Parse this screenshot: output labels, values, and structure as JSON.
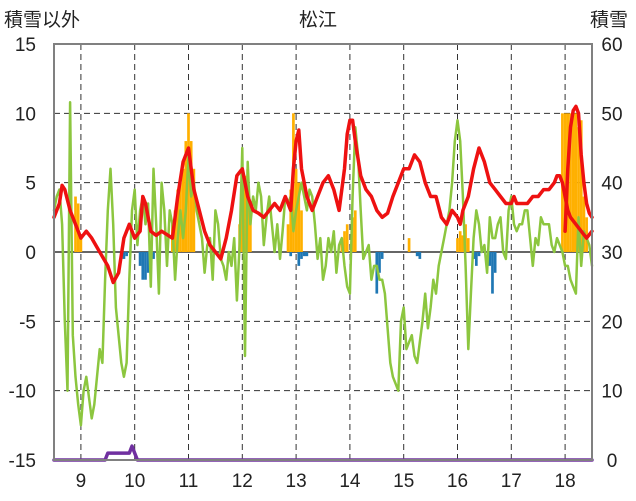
{
  "chart_data": {
    "type": "line",
    "title": "松江",
    "left_axis_label": "積雪以外",
    "right_axis_label": "積雪",
    "left_ylim": [
      -15,
      15
    ],
    "left_ticks": [
      15,
      10,
      5,
      0,
      -5,
      -10,
      -15
    ],
    "right_ylim": [
      0,
      60
    ],
    "right_ticks": [
      60,
      50,
      40,
      30,
      20,
      10,
      0
    ],
    "xlim": [
      8.5,
      18.5
    ],
    "x_ticks": [
      9,
      10,
      11,
      12,
      13,
      14,
      15,
      16,
      17,
      18
    ],
    "grid": "dashed vertical and horizontal",
    "colors": {
      "red": "#ee1111",
      "green": "#8cc63f",
      "orange": "#ffb000",
      "blue": "#1f77b4",
      "purple": "#7030a0",
      "frame": "#808080"
    },
    "series": [
      {
        "color": "red",
        "axis": "left",
        "x": [
          8.5,
          8.6,
          8.65,
          8.7,
          8.8,
          8.9,
          9.0,
          9.1,
          9.2,
          9.35,
          9.5,
          9.6,
          9.7,
          9.8,
          9.9,
          10.0,
          10.1,
          10.15,
          10.2,
          10.3,
          10.4,
          10.5,
          10.7,
          10.8,
          10.9,
          11.0,
          11.05,
          11.1,
          11.2,
          11.3,
          11.4,
          11.5,
          11.6,
          11.7,
          11.8,
          11.9,
          12.0,
          12.1,
          12.2,
          12.3,
          12.4,
          12.5,
          12.6,
          12.7,
          12.8,
          12.9,
          12.95,
          13.0,
          13.05,
          13.1,
          13.2,
          13.3,
          13.4,
          13.5,
          13.6,
          13.7,
          13.8,
          13.9,
          13.95,
          14.0,
          14.05,
          14.1,
          14.2,
          14.3,
          14.4,
          14.5,
          14.6,
          14.7,
          14.8,
          14.9,
          15.0,
          15.1,
          15.2,
          15.3,
          15.4,
          15.5,
          15.6,
          15.7,
          15.8,
          15.9,
          16.0,
          16.05,
          16.1,
          16.2,
          16.3,
          16.4,
          16.5,
          16.6,
          16.7,
          16.8,
          16.9,
          17.0,
          17.05,
          17.1,
          17.2,
          17.3,
          17.4,
          17.5,
          17.6,
          17.7,
          17.8,
          17.85,
          17.9,
          17.95,
          18.0,
          18.05,
          18.1,
          18.2,
          18.3,
          18.4,
          18.5
        ],
        "y": [
          2.5,
          3.5,
          4.8,
          4.5,
          3.0,
          2.0,
          1.0,
          1.5,
          1.0,
          0.0,
          -1.0,
          -2.2,
          -1.5,
          1.0,
          2.0,
          1.0,
          1.5,
          4.0,
          3.5,
          1.5,
          1.2,
          1.5,
          1.0,
          4.0,
          6.5,
          7.5,
          6.0,
          4.5,
          3.0,
          1.5,
          0.5,
          0.0,
          -0.5,
          1.0,
          3.0,
          5.5,
          6.0,
          4.0,
          3.0,
          2.8,
          2.5,
          3.0,
          3.5,
          3.0,
          4.0,
          3.0,
          6.0,
          8.0,
          8.8,
          6.0,
          4.0,
          3.0,
          4.0,
          5.0,
          5.5,
          4.5,
          3.0,
          6.0,
          8.5,
          9.5,
          9.5,
          8.0,
          5.5,
          4.5,
          4.0,
          3.0,
          2.5,
          2.8,
          4.0,
          5.0,
          6.0,
          6.0,
          7.0,
          6.5,
          5.0,
          4.0,
          4.0,
          2.5,
          2.0,
          3.0,
          2.5,
          2.0,
          3.0,
          4.0,
          6.0,
          7.5,
          6.5,
          5.0,
          4.5,
          4.0,
          3.5,
          3.5,
          4.0,
          3.5,
          3.5,
          3.5,
          4.0,
          4.0,
          4.5,
          4.5,
          5.0,
          5.5,
          5.5,
          5.0,
          4.0,
          3.0,
          2.5,
          2.0,
          1.5,
          1.0,
          1.5
        ]
      },
      {
        "color": "red",
        "axis": "left",
        "x": [
          18.0,
          18.05,
          18.1,
          18.15,
          18.2,
          18.25,
          18.3,
          18.35,
          18.4,
          18.45,
          18.5
        ],
        "y": [
          1.5,
          6.0,
          9.0,
          10.2,
          10.5,
          10.0,
          7.0,
          5.0,
          3.5,
          2.8,
          2.5
        ]
      },
      {
        "color": "green",
        "axis": "left",
        "x": [
          8.5,
          8.55,
          8.6,
          8.65,
          8.7,
          8.75,
          8.8,
          8.85,
          8.9,
          8.95,
          9.0,
          9.05,
          9.1,
          9.15,
          9.2,
          9.25,
          9.3,
          9.35,
          9.4,
          9.45,
          9.5,
          9.55,
          9.6,
          9.65,
          9.7,
          9.75,
          9.8,
          9.85,
          9.9,
          9.95,
          10.0,
          10.05,
          10.1,
          10.15,
          10.2,
          10.25,
          10.3,
          10.35,
          10.4,
          10.45,
          10.5,
          10.55,
          10.6,
          10.65,
          10.7,
          10.75,
          10.8,
          10.85,
          10.9,
          10.95,
          11.0,
          11.05,
          11.1,
          11.15,
          11.2,
          11.25,
          11.3,
          11.35,
          11.4,
          11.45,
          11.5,
          11.55,
          11.6,
          11.65,
          11.7,
          11.75,
          11.8,
          11.85,
          11.9,
          11.95,
          12.0,
          12.05,
          12.1,
          12.15,
          12.2,
          12.25,
          12.3,
          12.35,
          12.4,
          12.45,
          12.5,
          12.55,
          12.6,
          12.65,
          12.7,
          12.75,
          12.8,
          12.85,
          12.9,
          12.95,
          13.0,
          13.05,
          13.1,
          13.15,
          13.2,
          13.25,
          13.3,
          13.35,
          13.4,
          13.45,
          13.5,
          13.55,
          13.6,
          13.65,
          13.7,
          13.75,
          13.8,
          13.85,
          13.9,
          13.95,
          14.0,
          14.05,
          14.1,
          14.15,
          14.2,
          14.25,
          14.3,
          14.35,
          14.4,
          14.45,
          14.5,
          14.55,
          14.6,
          14.65,
          14.7,
          14.75,
          14.8,
          14.85,
          14.9,
          14.95,
          15.0,
          15.05,
          15.1,
          15.15,
          15.2,
          15.25,
          15.3,
          15.35,
          15.4,
          15.45,
          15.5,
          15.55,
          15.6,
          15.65,
          15.7,
          15.75,
          15.8,
          15.85,
          15.9,
          15.95,
          16.0,
          16.05,
          16.1,
          16.15,
          16.2,
          16.25,
          16.3,
          16.35,
          16.4,
          16.45,
          16.5,
          16.55,
          16.6,
          16.65,
          16.7,
          16.75,
          16.8,
          16.85,
          16.9,
          16.95,
          17.0,
          17.05,
          17.1,
          17.15,
          17.2,
          17.25,
          17.3,
          17.35,
          17.4,
          17.45,
          17.5,
          17.55,
          17.6,
          17.65,
          17.7,
          17.75,
          17.8,
          17.85,
          17.9,
          17.95,
          18.0,
          18.05,
          18.1,
          18.15,
          18.2,
          18.25,
          18.3,
          18.35,
          18.4,
          18.45,
          18.5
        ],
        "y": [
          3.0,
          4.0,
          4.5,
          2.0,
          -5.0,
          -10.0,
          10.8,
          -6.0,
          -9.0,
          -11.0,
          -12.5,
          -10.0,
          -9.0,
          -10.5,
          -12.0,
          -11.0,
          -9.0,
          -7.0,
          -8.0,
          -2.0,
          3.0,
          6.0,
          2.0,
          -4.0,
          -6.0,
          -8.0,
          -9.0,
          -8.0,
          -2.0,
          3.0,
          4.5,
          0.5,
          3.0,
          4.0,
          2.0,
          3.5,
          -2.5,
          6.0,
          2.0,
          -3.0,
          5.0,
          3.0,
          -1.0,
          3.0,
          2.0,
          -2.0,
          1.0,
          3.0,
          1.0,
          3.0,
          7.0,
          4.0,
          5.0,
          3.0,
          2.0,
          1.0,
          -1.5,
          0.5,
          1.0,
          -2.0,
          3.0,
          2.0,
          -0.5,
          -1.0,
          -2.0,
          0.0,
          -1.0,
          1.0,
          -3.5,
          0.5,
          7.5,
          -7.5,
          6.5,
          2.0,
          4.0,
          3.0,
          5.0,
          4.0,
          0.5,
          2.5,
          4.0,
          2.0,
          0.0,
          2.0,
          -0.5,
          1.5,
          4.0,
          3.5,
          4.0,
          1.5,
          3.0,
          4.0,
          5.0,
          4.0,
          3.0,
          4.5,
          4.0,
          2.0,
          -0.5,
          1.0,
          -2.0,
          -1.0,
          1.0,
          0.0,
          1.5,
          -1.5,
          0.5,
          1.0,
          -1.0,
          -2.5,
          -3.0,
          4.0,
          9.0,
          7.0,
          3.0,
          -0.5,
          0.0,
          0.5,
          -2.0,
          -1.0,
          -1.0,
          -2.0,
          -2.0,
          -3.0,
          -5.5,
          -8.0,
          -9.0,
          -9.5,
          -10.0,
          -5.0,
          -4.0,
          -7.0,
          -6.5,
          -6.0,
          -7.5,
          -8.0,
          -6.5,
          -5.0,
          -3.0,
          -5.5,
          -4.0,
          -2.0,
          -3.0,
          -1.0,
          0.0,
          1.0,
          2.0,
          3.0,
          5.0,
          8.0,
          9.5,
          8.0,
          4.0,
          -1.0,
          -7.0,
          -3.0,
          1.0,
          3.0,
          2.0,
          0.0,
          0.5,
          -1.5,
          2.5,
          1.0,
          1.0,
          2.0,
          2.5,
          0.0,
          -0.5,
          3.0,
          4.0,
          2.0,
          1.5,
          2.0,
          2.0,
          3.0,
          3.0,
          1.0,
          -1.0,
          1.0,
          0.5,
          2.5,
          2.0,
          2.0,
          2.0,
          0.5,
          0.0,
          1.0,
          0.5,
          0.0,
          -1.0,
          -1.0,
          -2.0,
          -2.5,
          -3.0,
          2.5,
          -1.0,
          1.5,
          1.0,
          0.5,
          -1.0
        ]
      },
      {
        "color": "orange",
        "axis": "left",
        "type": "bar",
        "x": [
          8.9,
          8.95,
          9.0,
          10.7,
          10.75,
          10.8,
          10.85,
          10.9,
          10.95,
          11.0,
          11.05,
          11.1,
          11.95,
          12.0,
          12.05,
          12.1,
          12.15,
          12.85,
          12.9,
          12.95,
          13.0,
          13.05,
          13.1,
          13.85,
          13.9,
          13.95,
          14.05,
          14.1,
          15.1,
          16.0,
          16.05,
          16.1,
          16.15,
          16.2,
          17.95,
          18.0,
          18.05,
          18.1,
          18.15,
          18.2,
          18.25,
          18.3,
          18.35,
          18.4
        ],
        "y": [
          4.0,
          3.5,
          1.2,
          2.0,
          3.0,
          4.5,
          5.0,
          6.0,
          8.0,
          10.0,
          8.0,
          6.0,
          2.0,
          4.0,
          5.5,
          6.0,
          3.0,
          2.0,
          4.5,
          10.0,
          6.0,
          5.0,
          3.0,
          1.0,
          1.5,
          2.0,
          2.5,
          3.0,
          1.0,
          1.0,
          1.5,
          1.2,
          2.0,
          1.0,
          10.0,
          10.0,
          10.0,
          10.0,
          10.0,
          10.0,
          9.0,
          9.5,
          4.0,
          2.5
        ]
      },
      {
        "color": "blue",
        "axis": "left",
        "type": "bar",
        "x": [
          9.8,
          9.85,
          10.1,
          10.15,
          10.2,
          10.25,
          10.3,
          10.35,
          12.9,
          13.05,
          13.1,
          13.15,
          13.2,
          14.25,
          14.5,
          14.55,
          14.6,
          15.25,
          15.3,
          16.3,
          16.35,
          16.4,
          16.6,
          16.65,
          16.7
        ],
        "y": [
          -0.5,
          -0.3,
          -1.0,
          -2.0,
          -2.0,
          -1.5,
          -1.0,
          -0.5,
          -0.3,
          -1.0,
          -0.5,
          -0.3,
          -0.3,
          -0.5,
          -3.0,
          -1.5,
          -0.5,
          -0.3,
          -0.5,
          -0.5,
          -1.0,
          -0.3,
          -1.0,
          -3.0,
          -1.5
        ]
      },
      {
        "color": "purple",
        "axis": "right",
        "x": [
          8.5,
          9.45,
          9.5,
          9.9,
          9.95,
          10.0,
          10.05,
          18.5
        ],
        "y": [
          0,
          0,
          1.0,
          1.0,
          2.0,
          1.0,
          0,
          0
        ]
      }
    ]
  }
}
